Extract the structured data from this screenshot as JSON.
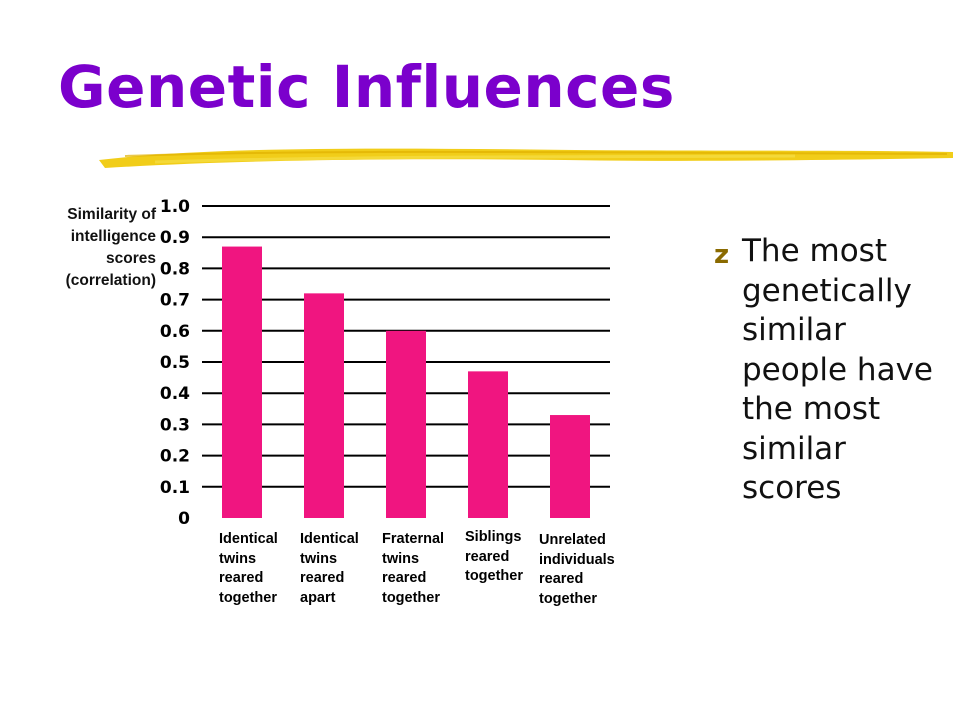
{
  "slide": {
    "title": "Genetic Influences",
    "bullet_icon": "z",
    "bullet_text": "The most genetically similar people have the most similar scores"
  },
  "colors": {
    "title": "#7b00cc",
    "underline": "#f0c800",
    "bar": "#f01580",
    "gridline": "#000000",
    "bullet_icon": "#8a6a00"
  },
  "chart_data": {
    "type": "bar",
    "title": "",
    "ylabel": "Similarity of\nintelligence\nscores\n(correlation)",
    "xlabel": "",
    "ylim": [
      0,
      1.0
    ],
    "yticks": [
      "0",
      "0.1",
      "0.2",
      "0.3",
      "0.4",
      "0.5",
      "0.6",
      "0.7",
      "0.8",
      "0.9",
      "1.0"
    ],
    "grid": true,
    "categories": [
      "Identical\ntwins\nreared\ntogether",
      "Identical\ntwins\nreared\napart",
      "Fraternal\ntwins\nreared\ntogether",
      "Siblings\nreared\ntogether",
      "Unrelated\nindividuals\nreared\ntogether"
    ],
    "values": [
      0.87,
      0.72,
      0.6,
      0.47,
      0.33
    ]
  }
}
